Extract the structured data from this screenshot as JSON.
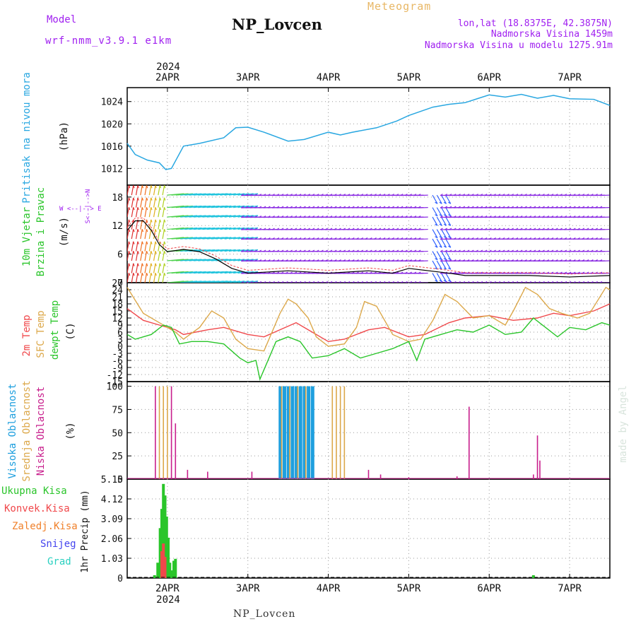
{
  "header": {
    "model_label": "Model",
    "model_name": "wrf-nmm_v3.9.1  e1km",
    "title": "NP_Lovcen",
    "product": "Meteogram",
    "coords": "lon,lat (18.8375E, 42.3875N)",
    "altitude": "Nadmorska Visina 1459m",
    "model_altitude": "Nadmorska Visina u modelu 1275.91m",
    "footer": "NP_Lovcen",
    "watermark": "made by Angel"
  },
  "colors": {
    "pressure": "#29a7e1",
    "temp2m": "#f0484b",
    "sfc": "#dca84a",
    "dewpt": "#2ac52a",
    "high": "#1e9fde",
    "mid": "#dca84a",
    "low": "#c81e8c",
    "total": "#2ac52a",
    "conv": "#f0484b",
    "frozen": "#f0802a",
    "snow": "#4444ee",
    "graupel": "#2ad0c0",
    "wind_purple": "#8a2be2",
    "wind_cyan": "#22c4dd",
    "wind_blue": "#3060ff",
    "wind_green": "#4ed24e"
  },
  "time_axis": {
    "top_year": "2024",
    "bottom_year": "2024",
    "days": [
      "2APR",
      "3APR",
      "4APR",
      "5APR",
      "6APR",
      "7APR"
    ]
  },
  "panels": {
    "pressure": {
      "label": "Pritisak na nivou mora",
      "unit": "(hPa)"
    },
    "wind": {
      "label1": "10m Vjetar",
      "label2": "Brzina i Pravac",
      "unit": "(m/s)",
      "compass": "W <--|--> E",
      "compass2": "S<--|-->N"
    },
    "temp": {
      "label1": "2m Temp",
      "label2": "SFC Temp",
      "label3": "dewpt Temp",
      "unit": "(C)"
    },
    "cloud": {
      "label1": "Visoka Oblacnost",
      "label2": "Srednja Oblacnost",
      "label3": "Niska Oblacnost",
      "unit": "(%)"
    },
    "precip": {
      "label_total": "Ukupna Kisa",
      "label_conv": "Konvek.Kisa",
      "label_frozen": "Zaledj.Kisa",
      "label_snow": "Snijeg",
      "label_graupel": "Grad",
      "unit": "1hr Precip (mm)"
    }
  },
  "chart_data": [
    {
      "type": "line",
      "title": "Pritisak na nivou mora",
      "ylabel": "(hPa)",
      "ylim": [
        1009,
        1026.5
      ],
      "yticks": [
        1012,
        1016,
        1020,
        1024
      ],
      "grid": true,
      "x_days": [
        [
          1.5,
          1016.5
        ],
        [
          1.6,
          1014.5
        ],
        [
          1.75,
          1013.5
        ],
        [
          1.9,
          1013.0
        ],
        [
          1.98,
          1011.8
        ],
        [
          2.05,
          1012.0
        ],
        [
          2.2,
          1016.0
        ],
        [
          2.4,
          1016.5
        ],
        [
          2.7,
          1017.5
        ],
        [
          2.85,
          1019.3
        ],
        [
          3.0,
          1019.4
        ],
        [
          3.2,
          1018.5
        ],
        [
          3.5,
          1016.9
        ],
        [
          3.7,
          1017.2
        ],
        [
          4.0,
          1018.5
        ],
        [
          4.15,
          1018.0
        ],
        [
          4.3,
          1018.5
        ],
        [
          4.6,
          1019.3
        ],
        [
          4.85,
          1020.5
        ],
        [
          5.0,
          1021.5
        ],
        [
          5.3,
          1023.0
        ],
        [
          5.5,
          1023.5
        ],
        [
          5.7,
          1023.8
        ],
        [
          5.85,
          1024.5
        ],
        [
          6.0,
          1025.2
        ],
        [
          6.2,
          1024.8
        ],
        [
          6.4,
          1025.3
        ],
        [
          6.6,
          1024.6
        ],
        [
          6.8,
          1025.1
        ],
        [
          7.0,
          1024.5
        ],
        [
          7.3,
          1024.4
        ],
        [
          7.5,
          1023.3
        ]
      ]
    },
    {
      "type": "line",
      "title": "10m Vjetar Brzina i Pravac",
      "ylabel": "(m/s)",
      "ylim": [
        0,
        20.5
      ],
      "yticks": [
        0,
        6,
        12,
        18
      ],
      "grid": true,
      "series": [
        {
          "name": "speed",
          "values": [
            [
              1.5,
              11
            ],
            [
              1.6,
              13
            ],
            [
              1.7,
              13
            ],
            [
              1.8,
              11
            ],
            [
              1.9,
              8
            ],
            [
              2.0,
              6.5
            ],
            [
              2.2,
              7
            ],
            [
              2.4,
              6.5
            ],
            [
              2.6,
              5
            ],
            [
              2.8,
              3
            ],
            [
              3.0,
              2
            ],
            [
              3.5,
              2.5
            ],
            [
              4.0,
              2
            ],
            [
              4.5,
              2.5
            ],
            [
              4.8,
              2
            ],
            [
              5.0,
              3
            ],
            [
              5.5,
              2
            ],
            [
              5.7,
              1.5
            ],
            [
              6.0,
              1.5
            ],
            [
              6.5,
              1.5
            ],
            [
              7.0,
              1.2
            ],
            [
              7.5,
              1.5
            ]
          ]
        }
      ]
    },
    {
      "type": "line",
      "title": "2m Temp / SFC Temp / dewpt Temp",
      "ylabel": "(C)",
      "ylim": [
        -15,
        27
      ],
      "yticks": [
        -15,
        -12,
        -9,
        -6,
        -3,
        0,
        3,
        6,
        9,
        12,
        15,
        18,
        21,
        24,
        27
      ],
      "grid": true,
      "series": [
        {
          "name": "2m Temp",
          "values": [
            [
              1.5,
              16
            ],
            [
              1.7,
              11
            ],
            [
              1.9,
              9
            ],
            [
              2.1,
              7
            ],
            [
              2.2,
              5
            ],
            [
              2.5,
              7
            ],
            [
              2.7,
              8
            ],
            [
              3.0,
              5
            ],
            [
              3.2,
              4
            ],
            [
              3.4,
              7
            ],
            [
              3.6,
              10
            ],
            [
              3.8,
              6
            ],
            [
              4.0,
              2
            ],
            [
              4.2,
              3
            ],
            [
              4.5,
              7
            ],
            [
              4.7,
              8
            ],
            [
              5.0,
              4
            ],
            [
              5.2,
              5
            ],
            [
              5.5,
              10
            ],
            [
              5.7,
              12
            ],
            [
              6.0,
              13
            ],
            [
              6.3,
              11
            ],
            [
              6.6,
              12
            ],
            [
              6.8,
              14
            ],
            [
              7.0,
              13
            ],
            [
              7.3,
              15
            ],
            [
              7.5,
              18
            ]
          ]
        },
        {
          "name": "SFC Temp",
          "values": [
            [
              1.5,
              25
            ],
            [
              1.7,
              14
            ],
            [
              1.9,
              10
            ],
            [
              2.1,
              6
            ],
            [
              2.2,
              3
            ],
            [
              2.4,
              8
            ],
            [
              2.55,
              15
            ],
            [
              2.7,
              12
            ],
            [
              2.85,
              3
            ],
            [
              3.0,
              -1
            ],
            [
              3.2,
              -2
            ],
            [
              3.4,
              14
            ],
            [
              3.5,
              20
            ],
            [
              3.6,
              18
            ],
            [
              3.75,
              12
            ],
            [
              3.85,
              4
            ],
            [
              4.0,
              0
            ],
            [
              4.2,
              1
            ],
            [
              4.35,
              8
            ],
            [
              4.45,
              19
            ],
            [
              4.6,
              17
            ],
            [
              4.8,
              5
            ],
            [
              5.0,
              2
            ],
            [
              5.15,
              3
            ],
            [
              5.3,
              11
            ],
            [
              5.45,
              22
            ],
            [
              5.6,
              19
            ],
            [
              5.8,
              12
            ],
            [
              6.0,
              13
            ],
            [
              6.2,
              9
            ],
            [
              6.3,
              15
            ],
            [
              6.45,
              25
            ],
            [
              6.6,
              22
            ],
            [
              6.75,
              16
            ],
            [
              6.9,
              14
            ],
            [
              7.1,
              12
            ],
            [
              7.25,
              14
            ],
            [
              7.45,
              25
            ],
            [
              7.5,
              24
            ]
          ]
        },
        {
          "name": "dewpt Temp",
          "values": [
            [
              1.5,
              5
            ],
            [
              1.6,
              3
            ],
            [
              1.8,
              5
            ],
            [
              1.95,
              9
            ],
            [
              2.05,
              8
            ],
            [
              2.15,
              1
            ],
            [
              2.3,
              2
            ],
            [
              2.5,
              2
            ],
            [
              2.7,
              1
            ],
            [
              2.9,
              -5
            ],
            [
              3.0,
              -7
            ],
            [
              3.1,
              -6
            ],
            [
              3.15,
              -14
            ],
            [
              3.2,
              -10
            ],
            [
              3.35,
              2
            ],
            [
              3.5,
              4
            ],
            [
              3.65,
              2
            ],
            [
              3.8,
              -5
            ],
            [
              4.0,
              -4
            ],
            [
              4.2,
              -1
            ],
            [
              4.4,
              -5
            ],
            [
              4.6,
              -3
            ],
            [
              4.8,
              -1
            ],
            [
              5.0,
              2
            ],
            [
              5.1,
              -6
            ],
            [
              5.2,
              3
            ],
            [
              5.4,
              5
            ],
            [
              5.6,
              7
            ],
            [
              5.8,
              6
            ],
            [
              6.0,
              9
            ],
            [
              6.2,
              5
            ],
            [
              6.4,
              6
            ],
            [
              6.55,
              12
            ],
            [
              6.7,
              8
            ],
            [
              6.85,
              4
            ],
            [
              7.0,
              8
            ],
            [
              7.2,
              7
            ],
            [
              7.4,
              10
            ],
            [
              7.5,
              9
            ]
          ]
        }
      ]
    },
    {
      "type": "bar",
      "title": "Visoka / Srednja / Niska Oblacnost",
      "ylabel": "(%)",
      "ylim": [
        0,
        105
      ],
      "yticks": [
        0,
        25,
        50,
        75,
        100
      ],
      "grid": true,
      "series": [
        {
          "name": "Visoka Oblacnost",
          "values": [
            [
              3.4,
              100
            ],
            [
              3.45,
              100
            ],
            [
              3.5,
              100
            ],
            [
              3.55,
              100
            ],
            [
              3.6,
              100
            ],
            [
              3.65,
              100
            ],
            [
              3.7,
              100
            ],
            [
              3.75,
              100
            ],
            [
              3.8,
              100
            ]
          ]
        },
        {
          "name": "Srednja Oblacnost",
          "values": [
            [
              1.9,
              100
            ],
            [
              1.95,
              100
            ],
            [
              2.0,
              100
            ],
            [
              3.42,
              100
            ],
            [
              3.52,
              100
            ],
            [
              3.62,
              100
            ],
            [
              3.72,
              100
            ],
            [
              4.05,
              100
            ],
            [
              4.1,
              100
            ],
            [
              4.15,
              100
            ],
            [
              4.2,
              100
            ]
          ]
        },
        {
          "name": "Niska Oblacnost",
          "values": [
            [
              1.85,
              100
            ],
            [
              2.05,
              100
            ],
            [
              2.1,
              60
            ],
            [
              2.25,
              10
            ],
            [
              2.5,
              8
            ],
            [
              3.05,
              8
            ],
            [
              4.5,
              10
            ],
            [
              4.65,
              5
            ],
            [
              5.75,
              78
            ],
            [
              6.6,
              47
            ],
            [
              6.63,
              20
            ],
            [
              6.55,
              5
            ],
            [
              5.6,
              3
            ],
            [
              5.0,
              2
            ]
          ]
        }
      ]
    },
    {
      "type": "bar",
      "title": "1hr Precip",
      "ylabel": "1hr Precip (mm)",
      "ylim": [
        0,
        5.15
      ],
      "yticks": [
        0,
        1.03,
        2.06,
        3.09,
        4.12,
        5.15
      ],
      "grid": true,
      "series": [
        {
          "name": "Ukupna Kisa",
          "values": [
            [
              1.84,
              0.15
            ],
            [
              1.88,
              0.8
            ],
            [
              1.91,
              2.6
            ],
            [
              1.93,
              3.6
            ],
            [
              1.95,
              4.9
            ],
            [
              1.97,
              4.3
            ],
            [
              1.99,
              3.2
            ],
            [
              2.01,
              2.1
            ],
            [
              2.03,
              0.8
            ],
            [
              2.05,
              0.4
            ],
            [
              2.08,
              0.9
            ],
            [
              2.1,
              1.0
            ],
            [
              6.55,
              0.15
            ]
          ]
        },
        {
          "name": "Konvek.Kisa",
          "values": [
            [
              1.93,
              1.4
            ],
            [
              1.95,
              1.8
            ],
            [
              1.97,
              1.1
            ]
          ]
        }
      ]
    }
  ]
}
